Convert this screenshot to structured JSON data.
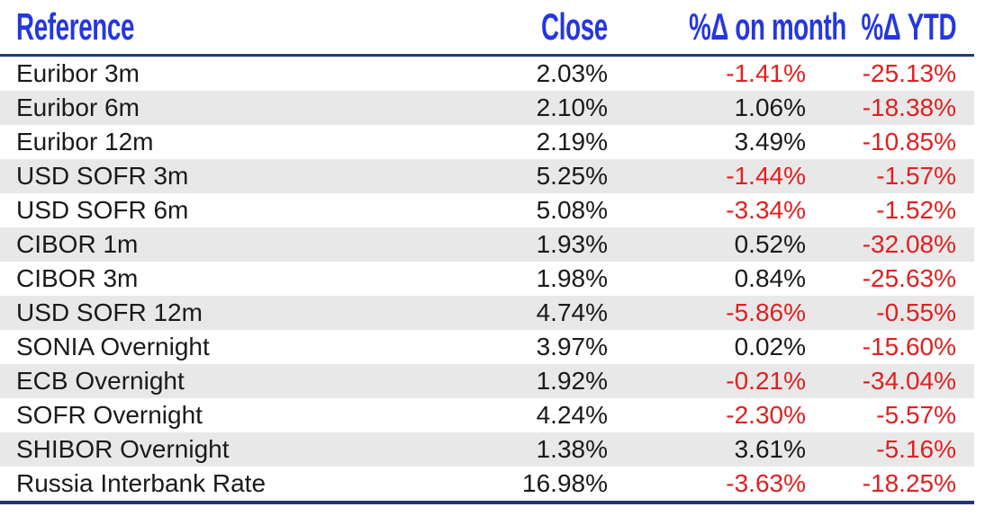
{
  "colors": {
    "header_blue": "#2437e0",
    "rule_navy": "#1f3a70",
    "negative_red": "#e02020",
    "text_black": "#1a1a1a",
    "band_gray": "#e8e8e8"
  },
  "chart_data": {
    "type": "table",
    "columns": [
      "Reference",
      "Close",
      "%Δ on month",
      "%Δ YTD"
    ],
    "rows": [
      [
        "Euribor 3m",
        "2.03%",
        "-1.41%",
        "-25.13%"
      ],
      [
        "Euribor 6m",
        "2.10%",
        "1.06%",
        "-18.38%"
      ],
      [
        "Euribor 12m",
        "2.19%",
        "3.49%",
        "-10.85%"
      ],
      [
        "USD SOFR 3m",
        "5.25%",
        "-1.44%",
        "-1.57%"
      ],
      [
        "USD SOFR 6m",
        "5.08%",
        "-3.34%",
        "-1.52%"
      ],
      [
        "CIBOR 1m",
        "1.93%",
        "0.52%",
        "-32.08%"
      ],
      [
        "CIBOR 3m",
        "1.98%",
        "0.84%",
        "-25.63%"
      ],
      [
        "USD SOFR 12m",
        "4.74%",
        "-5.86%",
        "-0.55%"
      ],
      [
        "SONIA Overnight",
        "3.97%",
        "0.02%",
        "-15.60%"
      ],
      [
        "ECB Overnight",
        "1.92%",
        "-0.21%",
        "-34.04%"
      ],
      [
        "SOFR Overnight",
        "4.24%",
        "-2.30%",
        "-5.57%"
      ],
      [
        "SHIBOR Overnight",
        "1.38%",
        "3.61%",
        "-5.16%"
      ],
      [
        "Russia Interbank Rate",
        "16.98%",
        "-3.63%",
        "-18.25%"
      ]
    ],
    "title": "",
    "layout_hints": {
      "alternating_row_bands": true,
      "negative_values_red": true,
      "header_rule_color": "#1f3a70",
      "value_alignment": "right"
    }
  }
}
